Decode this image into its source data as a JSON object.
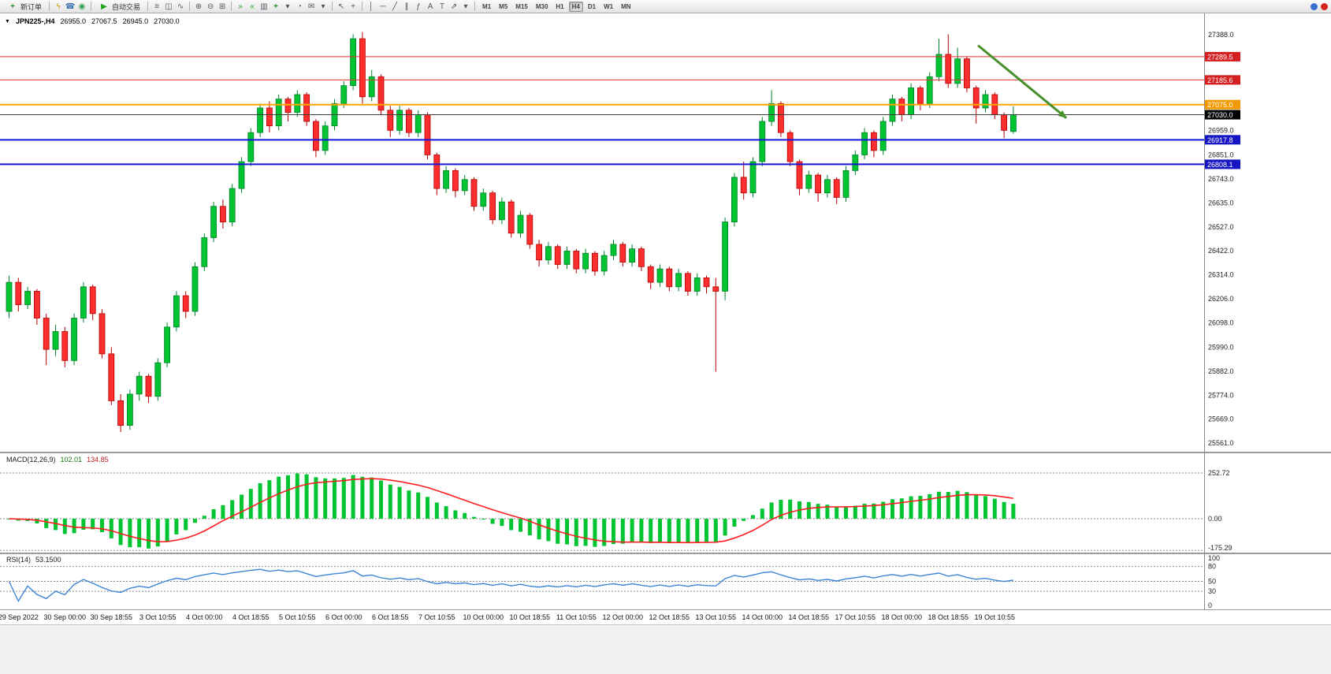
{
  "toolbar": {
    "new_order_label": "新订单",
    "autotrade_label": "自动交易",
    "timeframes": [
      "M1",
      "M5",
      "M15",
      "M30",
      "H1",
      "H4",
      "D1",
      "W1",
      "MN"
    ],
    "active_timeframe": "H4",
    "icons": {
      "play": "▶",
      "bars": "≡",
      "candles": "◫",
      "linechart": "∿",
      "zoom_in": "⊕",
      "zoom_out": "⊖",
      "tile": "⊞",
      "autoscroll": "»",
      "shift": "«",
      "add_indicator": "+",
      "clock": "◔",
      "mail": "✉",
      "cursor": "↖",
      "crosshair": "+",
      "vline": "│",
      "hline": "─",
      "trend": "╱",
      "channel": "∥",
      "fibo": "ƒ",
      "text_a": "A",
      "text_t": "T",
      "arrows": "⇗",
      "chevron": "▾",
      "flash": "ϟ",
      "phone": "☎",
      "globe": "◉",
      "newchart": "▥"
    }
  },
  "header": {
    "collapse_icon": "▼",
    "symbol": "JPN225-,H4",
    "open": "26955.0",
    "high": "27067.5",
    "low": "26945.0",
    "close": "27030.0"
  },
  "indicators": {
    "macd_name": "MACD(12,26,9)",
    "macd_v1": "102.01",
    "macd_v2": "134.85",
    "rsi_name": "RSI(14)",
    "rsi_v": "53.1500"
  },
  "chart_data": {
    "type": "candlestick",
    "symbol": "JPN225-",
    "timeframe": "H4",
    "current_ohlc": {
      "open": 26955.0,
      "high": 27067.5,
      "low": 26945.0,
      "close": 27030.0
    },
    "price_axis": {
      "max": 27388.0,
      "min": 25561.0,
      "labels": [
        27388.0,
        26959.0,
        26851.0,
        26743.0,
        26635.0,
        26527.0,
        26422.0,
        26314.0,
        26206.0,
        26098.0,
        25990.0,
        25882.0,
        25774.0,
        25669.0,
        25561.0
      ]
    },
    "h_lines": [
      {
        "price": 27289.5,
        "label": "27289.5",
        "color": "#e62e2e",
        "badge": "#d42020",
        "width": 1
      },
      {
        "price": 27185.6,
        "label": "27185.6",
        "color": "#e62e2e",
        "badge": "#d42020",
        "width": 1
      },
      {
        "price": 27075.0,
        "label": "27075.0",
        "color": "#ffa400",
        "badge": "#f29b00",
        "width": 2
      },
      {
        "price": 27030.0,
        "label": "27030.0",
        "color": "#3c3c3c",
        "badge": "#000000",
        "width": 1
      },
      {
        "price": 26917.8,
        "label": "26917.8",
        "color": "#1717d8",
        "badge": "#1515c4",
        "width": 2
      },
      {
        "price": 26808.1,
        "label": "26808.1",
        "color": "#1717d8",
        "badge": "#1515c4",
        "width": 2
      }
    ],
    "colors": {
      "up": "#00c431",
      "up_stroke": "#00832a",
      "down": "#ff2e2e",
      "down_stroke": "#b40000",
      "background": "#ffffff"
    },
    "candles": [
      [
        26150,
        26310,
        26120,
        26280
      ],
      [
        26280,
        26300,
        26150,
        26180
      ],
      [
        26180,
        26260,
        26160,
        26240
      ],
      [
        26240,
        26250,
        26090,
        26120
      ],
      [
        26120,
        26140,
        25910,
        25980
      ],
      [
        25980,
        26090,
        25950,
        26060
      ],
      [
        26060,
        26080,
        25900,
        25930
      ],
      [
        25930,
        26140,
        25910,
        26120
      ],
      [
        26120,
        26280,
        26100,
        26260
      ],
      [
        26260,
        26270,
        26110,
        26140
      ],
      [
        26140,
        26160,
        25940,
        25960
      ],
      [
        25960,
        25990,
        25730,
        25750
      ],
      [
        25750,
        25780,
        25610,
        25640
      ],
      [
        25640,
        25800,
        25620,
        25780
      ],
      [
        25780,
        25880,
        25750,
        25860
      ],
      [
        25860,
        25870,
        25740,
        25770
      ],
      [
        25770,
        25940,
        25750,
        25920
      ],
      [
        25920,
        26100,
        25900,
        26080
      ],
      [
        26080,
        26240,
        26060,
        26220
      ],
      [
        26220,
        26240,
        26120,
        26150
      ],
      [
        26150,
        26370,
        26130,
        26350
      ],
      [
        26350,
        26500,
        26330,
        26480
      ],
      [
        26480,
        26640,
        26460,
        26620
      ],
      [
        26620,
        26650,
        26520,
        26550
      ],
      [
        26550,
        26720,
        26530,
        26700
      ],
      [
        26700,
        26840,
        26680,
        26820
      ],
      [
        26820,
        26970,
        26800,
        26950
      ],
      [
        26950,
        27080,
        26930,
        27060
      ],
      [
        27060,
        27090,
        26950,
        26980
      ],
      [
        26980,
        27120,
        26960,
        27100
      ],
      [
        27100,
        27110,
        27000,
        27040
      ],
      [
        27040,
        27140,
        27020,
        27120
      ],
      [
        27120,
        27130,
        26980,
        27000
      ],
      [
        27000,
        27010,
        26840,
        26870
      ],
      [
        26870,
        27000,
        26850,
        26980
      ],
      [
        26980,
        27100,
        26960,
        27080
      ],
      [
        27080,
        27180,
        27060,
        27160
      ],
      [
        27160,
        27390,
        27140,
        27370
      ],
      [
        27370,
        27400,
        27080,
        27110
      ],
      [
        27110,
        27230,
        27090,
        27200
      ],
      [
        27200,
        27210,
        27030,
        27050
      ],
      [
        27050,
        27070,
        26930,
        26960
      ],
      [
        26960,
        27070,
        26940,
        27050
      ],
      [
        27050,
        27060,
        26930,
        26950
      ],
      [
        26950,
        27050,
        26930,
        27030
      ],
      [
        27030,
        27040,
        26830,
        26850
      ],
      [
        26850,
        26860,
        26670,
        26700
      ],
      [
        26700,
        26800,
        26680,
        26780
      ],
      [
        26780,
        26790,
        26660,
        26690
      ],
      [
        26690,
        26760,
        26670,
        26740
      ],
      [
        26740,
        26750,
        26600,
        26620
      ],
      [
        26620,
        26700,
        26600,
        26680
      ],
      [
        26680,
        26690,
        26540,
        26560
      ],
      [
        26560,
        26660,
        26540,
        26640
      ],
      [
        26640,
        26650,
        26480,
        26500
      ],
      [
        26500,
        26600,
        26480,
        26580
      ],
      [
        26580,
        26590,
        26430,
        26450
      ],
      [
        26450,
        26470,
        26350,
        26380
      ],
      [
        26380,
        26460,
        26360,
        26440
      ],
      [
        26440,
        26450,
        26340,
        26360
      ],
      [
        26360,
        26440,
        26340,
        26420
      ],
      [
        26420,
        26430,
        26320,
        26340
      ],
      [
        26340,
        26430,
        26320,
        26410
      ],
      [
        26410,
        26420,
        26310,
        26330
      ],
      [
        26330,
        26420,
        26310,
        26400
      ],
      [
        26400,
        26470,
        26380,
        26450
      ],
      [
        26450,
        26460,
        26350,
        26370
      ],
      [
        26370,
        26450,
        26350,
        26430
      ],
      [
        26430,
        26440,
        26330,
        26350
      ],
      [
        26350,
        26360,
        26250,
        26280
      ],
      [
        26280,
        26360,
        26260,
        26340
      ],
      [
        26340,
        26350,
        26240,
        26260
      ],
      [
        26260,
        26340,
        26240,
        26320
      ],
      [
        26320,
        26330,
        26220,
        26240
      ],
      [
        26240,
        26320,
        26220,
        26300
      ],
      [
        26300,
        26310,
        26230,
        26260
      ],
      [
        26260,
        26300,
        25880,
        26240
      ],
      [
        26240,
        26570,
        26200,
        26550
      ],
      [
        26550,
        26770,
        26530,
        26750
      ],
      [
        26750,
        26820,
        26650,
        26680
      ],
      [
        26680,
        26840,
        26660,
        26820
      ],
      [
        26820,
        27020,
        26800,
        27000
      ],
      [
        27000,
        27140,
        26980,
        27080
      ],
      [
        27080,
        27090,
        26930,
        26950
      ],
      [
        26950,
        26960,
        26800,
        26820
      ],
      [
        26820,
        26830,
        26670,
        26700
      ],
      [
        26700,
        26780,
        26680,
        26760
      ],
      [
        26760,
        26770,
        26640,
        26680
      ],
      [
        26680,
        26760,
        26660,
        26740
      ],
      [
        26740,
        26750,
        26630,
        26660
      ],
      [
        26660,
        26800,
        26640,
        26780
      ],
      [
        26780,
        26870,
        26760,
        26850
      ],
      [
        26850,
        26970,
        26830,
        26950
      ],
      [
        26950,
        26960,
        26840,
        26870
      ],
      [
        26870,
        27020,
        26850,
        27000
      ],
      [
        27000,
        27120,
        26980,
        27100
      ],
      [
        27100,
        27110,
        27000,
        27030
      ],
      [
        27030,
        27170,
        27010,
        27150
      ],
      [
        27150,
        27160,
        27050,
        27080
      ],
      [
        27080,
        27220,
        27060,
        27200
      ],
      [
        27200,
        27370,
        27180,
        27300
      ],
      [
        27300,
        27390,
        27150,
        27170
      ],
      [
        27170,
        27330,
        27150,
        27280
      ],
      [
        27280,
        27290,
        27130,
        27150
      ],
      [
        27150,
        27160,
        26990,
        27060
      ],
      [
        27060,
        27140,
        27040,
        27120
      ],
      [
        27120,
        27130,
        27010,
        27030
      ],
      [
        27030,
        27040,
        26925,
        26960
      ],
      [
        26955,
        27067.5,
        26945,
        27030
      ]
    ],
    "time_labels": [
      "29 Sep 2022",
      "30 Sep 00:00",
      "30 Sep 18:55",
      "3 Oct 10:55",
      "4 Oct 00:00",
      "4 Oct 18:55",
      "5 Oct 10:55",
      "6 Oct 00:00",
      "6 Oct 18:55",
      "7 Oct 10:55",
      "10 Oct 00:00",
      "10 Oct 18:55",
      "11 Oct 10:55",
      "12 Oct 00:00",
      "12 Oct 18:55",
      "13 Oct 10:55",
      "14 Oct 00:00",
      "14 Oct 18:55",
      "17 Oct 10:55",
      "18 Oct 00:00",
      "18 Oct 18:55",
      "19 Oct 10:55"
    ],
    "arrow": {
      "x1_candle": 104.5,
      "price1": 27340,
      "x2_candle": 114,
      "price2": 27015,
      "color": "#478f2a"
    },
    "macd": {
      "params": "12,26,9",
      "value": 102.01,
      "signal": 134.85,
      "axis_labels": [
        "252.72",
        "0.00",
        "-175.29"
      ],
      "axis_values": [
        252.72,
        0,
        -175.29
      ],
      "hist_color": "#00c431",
      "signal_color": "#ff1e1e"
    },
    "rsi": {
      "period": 14,
      "value": 53.15,
      "axis_labels": [
        "100",
        "80",
        "50",
        "30",
        "0"
      ],
      "axis_values": [
        100,
        80,
        50,
        30,
        0
      ],
      "levels": [
        80,
        50,
        30
      ],
      "color": "#3f85d6"
    }
  }
}
